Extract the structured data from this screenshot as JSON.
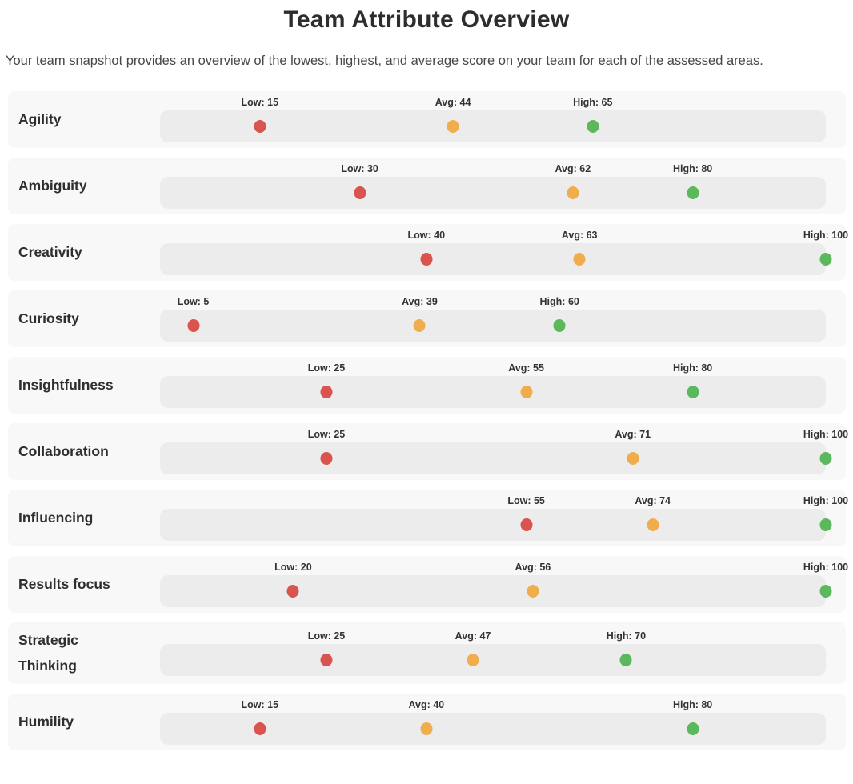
{
  "header": {
    "title": "Team Attribute Overview",
    "description": "Your team snapshot provides an overview of the lowest, highest, and average score on your team for each of the assessed areas."
  },
  "colors": {
    "low_dot": "#d9534f",
    "avg_dot": "#f0ad4e",
    "high_dot": "#5cb85c",
    "row_background": "#f8f8f8",
    "track_background": "#ececec",
    "label_text": "#333333"
  },
  "chart_data": {
    "type": "scatter",
    "title": "Team Attribute Overview",
    "orientation": "horizontal",
    "xlim": [
      0,
      100
    ],
    "grid": false,
    "legend_position": "none",
    "label_separator": ": ",
    "categories": [
      "Agility",
      "Ambiguity",
      "Creativity",
      "Curiosity",
      "Insightfulness",
      "Collaboration",
      "Influencing",
      "Results focus",
      "Strategic Thinking",
      "Humility"
    ],
    "series": [
      {
        "name": "Low",
        "color": "#d9534f",
        "values": [
          15,
          30,
          40,
          5,
          25,
          25,
          55,
          20,
          25,
          15
        ]
      },
      {
        "name": "Avg",
        "color": "#f0ad4e",
        "values": [
          44,
          62,
          63,
          39,
          55,
          71,
          74,
          56,
          47,
          40
        ]
      },
      {
        "name": "High",
        "color": "#5cb85c",
        "values": [
          65,
          80,
          100,
          60,
          80,
          100,
          100,
          100,
          70,
          80
        ]
      }
    ]
  }
}
